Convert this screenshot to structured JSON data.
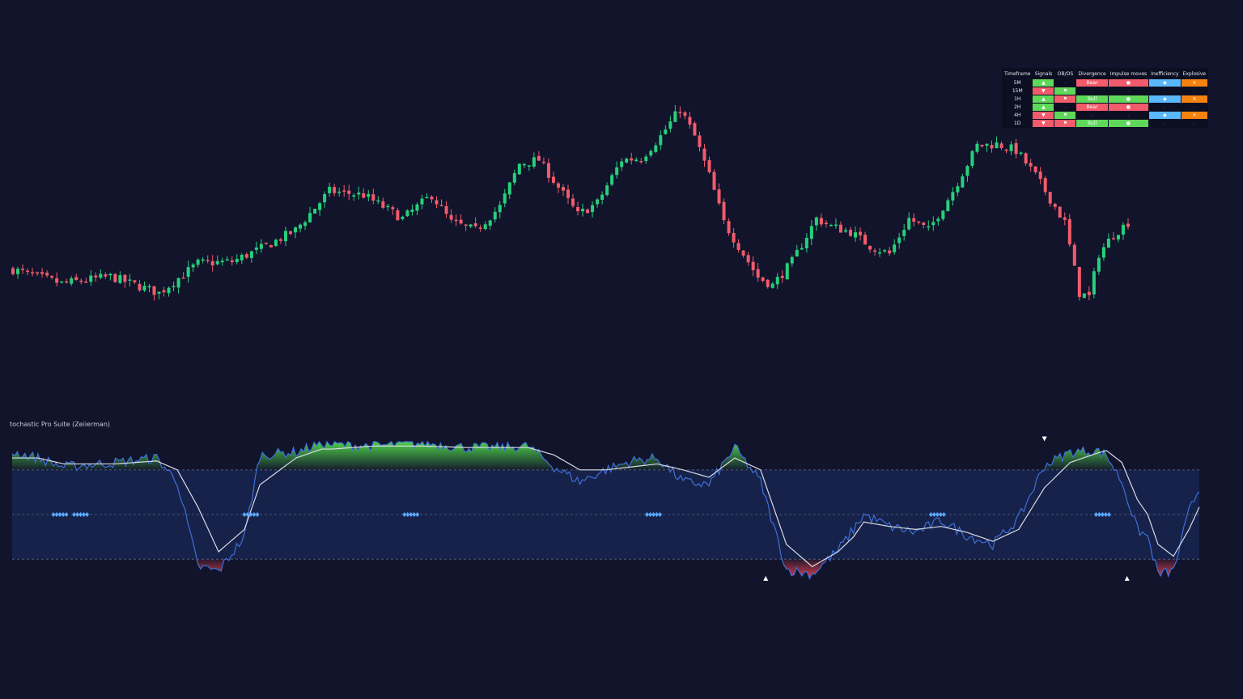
{
  "indicator": {
    "title": "tochastic Pro Suite (Zeiierman)"
  },
  "colors": {
    "background": "#11142b",
    "bull_candle": "#26d07c",
    "bear_candle": "#f25b6b",
    "stoch_k": "#3f6fd9",
    "stoch_d": "#d8dbe6",
    "mid_band": "#16224a",
    "overbought_fill": "#4fd14a",
    "oversold_fill": "#e0404f",
    "signal_diamond": "#5aa8ff",
    "table_bull": "#5fd85a",
    "table_bear": "#f25b6b",
    "table_blue": "#5ab8ff",
    "table_orange": "#f5820f"
  },
  "table": {
    "headers": [
      "Timeframe",
      "Signals",
      "OB/OS",
      "Divergence",
      "Impulse moves",
      "Inefficiency",
      "Explosive"
    ],
    "rows": [
      {
        "tf": "5M",
        "signal": "▲",
        "signal_color": "bull",
        "obos": "-",
        "obos_color": "empty",
        "div": "Bear",
        "div_color": "bear",
        "imp": "●",
        "imp_color": "bear",
        "ineff": "◆",
        "ineff_color": "blue",
        "exp": "✕",
        "exp_color": "orange"
      },
      {
        "tf": "15M",
        "signal": "▼",
        "signal_color": "bear",
        "obos": "⚑",
        "obos_color": "bull",
        "div": "-",
        "div_color": "empty",
        "imp": "-",
        "imp_color": "empty",
        "ineff": "-",
        "ineff_color": "empty",
        "exp": "-",
        "exp_color": "empty"
      },
      {
        "tf": "1H",
        "signal": "▲",
        "signal_color": "bull",
        "obos": "⚑",
        "obos_color": "bear",
        "div": "Bull",
        "div_color": "bull",
        "imp": "●",
        "imp_color": "bull",
        "ineff": "◆",
        "ineff_color": "blue",
        "exp": "✕",
        "exp_color": "orange"
      },
      {
        "tf": "2H",
        "signal": "▲",
        "signal_color": "bull",
        "obos": "-",
        "obos_color": "empty",
        "div": "Bear",
        "div_color": "bear",
        "imp": "●",
        "imp_color": "bear",
        "ineff": "-",
        "ineff_color": "empty",
        "exp": "-",
        "exp_color": "empty"
      },
      {
        "tf": "4H",
        "signal": "▼",
        "signal_color": "bear",
        "obos": "⚑",
        "obos_color": "bull",
        "div": "-",
        "div_color": "empty",
        "imp": "-",
        "imp_color": "empty",
        "ineff": "◆",
        "ineff_color": "blue",
        "exp": "✕",
        "exp_color": "orange"
      },
      {
        "tf": "1D",
        "signal": "▼",
        "signal_color": "bear",
        "obos": "⚑",
        "obos_color": "bear",
        "div": "Bull",
        "div_color": "bull",
        "imp": "●",
        "imp_color": "bull",
        "ineff": "-",
        "ineff_color": "empty",
        "exp": "-",
        "exp_color": "empty"
      }
    ]
  },
  "chart_data": [
    {
      "type": "candlestick",
      "candle_count": 230,
      "close_path": [
        [
          0,
          100
        ],
        [
          10,
          82
        ],
        [
          20,
          91
        ],
        [
          30,
          70
        ],
        [
          38,
          108
        ],
        [
          45,
          110
        ],
        [
          52,
          130
        ],
        [
          58,
          150
        ],
        [
          65,
          200
        ],
        [
          72,
          195
        ],
        [
          80,
          165
        ],
        [
          86,
          195
        ],
        [
          90,
          160
        ],
        [
          95,
          150
        ],
        [
          100,
          180
        ],
        [
          104,
          235
        ],
        [
          108,
          240
        ],
        [
          112,
          205
        ],
        [
          116,
          170
        ],
        [
          120,
          185
        ],
        [
          125,
          240
        ],
        [
          129,
          242
        ],
        [
          133,
          270
        ],
        [
          137,
          305
        ],
        [
          140,
          270
        ],
        [
          143,
          220
        ],
        [
          146,
          160
        ],
        [
          150,
          120
        ],
        [
          153,
          90
        ],
        [
          156,
          80
        ],
        [
          160,
          110
        ],
        [
          165,
          165
        ],
        [
          168,
          155
        ],
        [
          172,
          148
        ],
        [
          176,
          130
        ],
        [
          180,
          120
        ],
        [
          184,
          165
        ],
        [
          188,
          150
        ],
        [
          193,
          200
        ],
        [
          198,
          258
        ],
        [
          202,
          260
        ],
        [
          206,
          252
        ],
        [
          210,
          220
        ],
        [
          213,
          190
        ],
        [
          216,
          160
        ],
        [
          219,
          70
        ],
        [
          221,
          65
        ],
        [
          223,
          120
        ],
        [
          226,
          145
        ],
        [
          230,
          165
        ]
      ],
      "y_range": [
        0,
        320
      ]
    },
    {
      "type": "line",
      "name": "Stochastic Pro Suite",
      "ylim": [
        0,
        100
      ],
      "overbought": 80,
      "midline": 50,
      "oversold": 20,
      "x": [
        0,
        5,
        10,
        20,
        28,
        32,
        36,
        40,
        45,
        48,
        55,
        60,
        62,
        70,
        80,
        88,
        95,
        100,
        105,
        110,
        115,
        120,
        125,
        130,
        135,
        140,
        145,
        150,
        155,
        160,
        163,
        165,
        170,
        175,
        180,
        185,
        190,
        195,
        200,
        205,
        210,
        212,
        215,
        218,
        220,
        222,
        225,
        228,
        230
      ],
      "k": [
        92,
        88,
        82,
        85,
        88,
        72,
        15,
        12,
        35,
        90,
        92,
        98,
        97,
        96,
        98,
        95,
        95,
        96,
        82,
        72,
        80,
        86,
        88,
        72,
        70,
        95,
        72,
        13,
        10,
        26,
        40,
        50,
        42,
        38,
        46,
        36,
        30,
        47,
        83,
        92,
        93,
        90,
        72,
        40,
        35,
        10,
        12,
        52,
        68
      ],
      "d": [
        88,
        88,
        84,
        84,
        86,
        80,
        55,
        25,
        40,
        70,
        88,
        94,
        94,
        96,
        96,
        95,
        95,
        95,
        90,
        80,
        80,
        82,
        84,
        80,
        75,
        88,
        80,
        30,
        15,
        25,
        35,
        45,
        42,
        40,
        42,
        38,
        32,
        40,
        68,
        85,
        91,
        93,
        85,
        60,
        50,
        30,
        22,
        40,
        55
      ],
      "diamonds": [
        [
          8,
          50
        ],
        [
          12,
          50
        ],
        [
          45,
          50
        ],
        [
          76,
          50
        ],
        [
          123,
          50
        ],
        [
          178,
          50
        ],
        [
          210,
          50
        ]
      ],
      "triangles_up": [
        [
          146,
          12
        ],
        [
          216,
          12
        ]
      ],
      "triangles_down": [
        [
          200,
          97
        ]
      ]
    }
  ]
}
